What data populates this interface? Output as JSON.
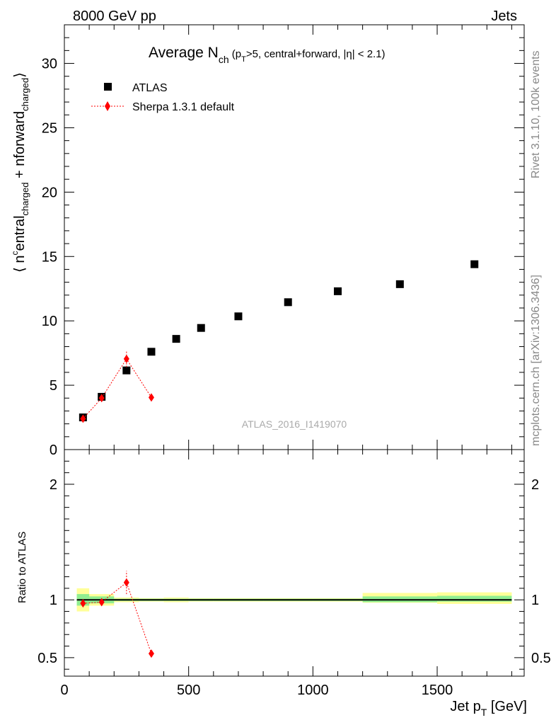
{
  "header": {
    "left": "8000 GeV pp",
    "right": "Jets"
  },
  "side_labels": {
    "rivet": "Rivet 3.1.10,  100k events",
    "mcplots": "mcplots.cern.ch [arXiv:1306.3436]"
  },
  "watermark": "ATLAS_2016_I1419070",
  "title": {
    "main": "Average N",
    "main_sub": "ch",
    "cut_open": " (p",
    "cut_sub": "T",
    "cut_rest": ">5, central+forward, |η| < 2.1)"
  },
  "ylabel": {
    "open": "⟨ n",
    "sup_c": "c",
    "entral": "entral",
    "sub1": "charged",
    "plus": " + n",
    "forward": "forward",
    "sub2": "charged",
    "close": "⟩"
  },
  "ratio_ylabel": "Ratio to ATLAS",
  "xlabel": {
    "main": "Jet p",
    "sub": "T",
    "unit": " [GeV]"
  },
  "chart_data": {
    "type": "scatter",
    "x_axis": {
      "label": "Jet p_T [GeV]",
      "range": [
        0,
        1850
      ],
      "ticks": [
        0,
        500,
        1000,
        1500
      ],
      "tick_labels": [
        "0",
        "500",
        "1000",
        "1500"
      ]
    },
    "main_panel": {
      "y_range": [
        0,
        33
      ],
      "y_ticks": [
        0,
        5,
        10,
        15,
        20,
        25,
        30
      ],
      "y_tick_labels": [
        "0",
        "5",
        "10",
        "15",
        "20",
        "25",
        "30"
      ],
      "legend_position": "top-left",
      "series": [
        {
          "name": "ATLAS",
          "style": "black-square",
          "x": [
            75,
            150,
            250,
            350,
            450,
            550,
            700,
            900,
            1100,
            1350,
            1650
          ],
          "y": [
            2.5,
            4.1,
            6.15,
            7.6,
            8.6,
            9.45,
            10.35,
            11.45,
            12.3,
            12.85,
            14.4
          ],
          "x_lo": [
            50,
            100,
            200,
            300,
            400,
            500,
            600,
            800,
            1000,
            1200,
            1500
          ],
          "x_hi": [
            100,
            200,
            300,
            400,
            500,
            600,
            800,
            1000,
            1200,
            1500,
            1800
          ]
        },
        {
          "name": "Sherpa 1.3.1 default",
          "style": "red-diamond-dotted",
          "color": "#ff0000",
          "x": [
            75,
            150,
            250,
            350
          ],
          "y": [
            2.4,
            4.0,
            7.05,
            4.05
          ],
          "err": [
            0.1,
            0.1,
            0.65,
            0.1
          ]
        }
      ]
    },
    "ratio_panel": {
      "y_range": [
        0.34,
        2.3
      ],
      "y_ticks": [
        0.5,
        1,
        2
      ],
      "y_tick_labels": [
        "0.5",
        "1",
        "2"
      ],
      "reference_line": 1,
      "band_color_inner": "#90ee90",
      "band_color_outer": "#ffff99",
      "bands": [
        {
          "x_lo": 50,
          "x_hi": 100,
          "inner": [
            0.95,
            1.05
          ],
          "outer": [
            0.9,
            1.1
          ]
        },
        {
          "x_lo": 100,
          "x_hi": 200,
          "inner": [
            0.97,
            1.03
          ],
          "outer": [
            0.95,
            1.05
          ]
        },
        {
          "x_lo": 200,
          "x_hi": 300,
          "inner": [
            0.99,
            1.01
          ],
          "outer": [
            0.98,
            1.02
          ]
        },
        {
          "x_lo": 300,
          "x_hi": 400,
          "inner": [
            0.99,
            1.01
          ],
          "outer": [
            0.985,
            1.015
          ]
        },
        {
          "x_lo": 400,
          "x_hi": 500,
          "inner": [
            0.99,
            1.01
          ],
          "outer": [
            0.98,
            1.02
          ]
        },
        {
          "x_lo": 500,
          "x_hi": 600,
          "inner": [
            0.99,
            1.01
          ],
          "outer": [
            0.985,
            1.015
          ]
        },
        {
          "x_lo": 600,
          "x_hi": 800,
          "inner": [
            0.99,
            1.01
          ],
          "outer": [
            0.985,
            1.015
          ]
        },
        {
          "x_lo": 800,
          "x_hi": 1000,
          "inner": [
            0.99,
            1.01
          ],
          "outer": [
            0.985,
            1.015
          ]
        },
        {
          "x_lo": 1000,
          "x_hi": 1200,
          "inner": [
            0.99,
            1.01
          ],
          "outer": [
            0.985,
            1.015
          ]
        },
        {
          "x_lo": 1200,
          "x_hi": 1500,
          "inner": [
            0.98,
            1.03
          ],
          "outer": [
            0.975,
            1.06
          ]
        },
        {
          "x_lo": 1500,
          "x_hi": 1800,
          "inner": [
            0.985,
            1.035
          ],
          "outer": [
            0.965,
            1.065
          ]
        }
      ],
      "series": [
        {
          "name": "Sherpa 1.3.1 default",
          "color": "#ff0000",
          "x": [
            75,
            150,
            250,
            350
          ],
          "y": [
            0.97,
            0.98,
            1.15,
            0.535
          ],
          "err": [
            0.01,
            0.01,
            0.1,
            0.01
          ]
        }
      ]
    }
  }
}
